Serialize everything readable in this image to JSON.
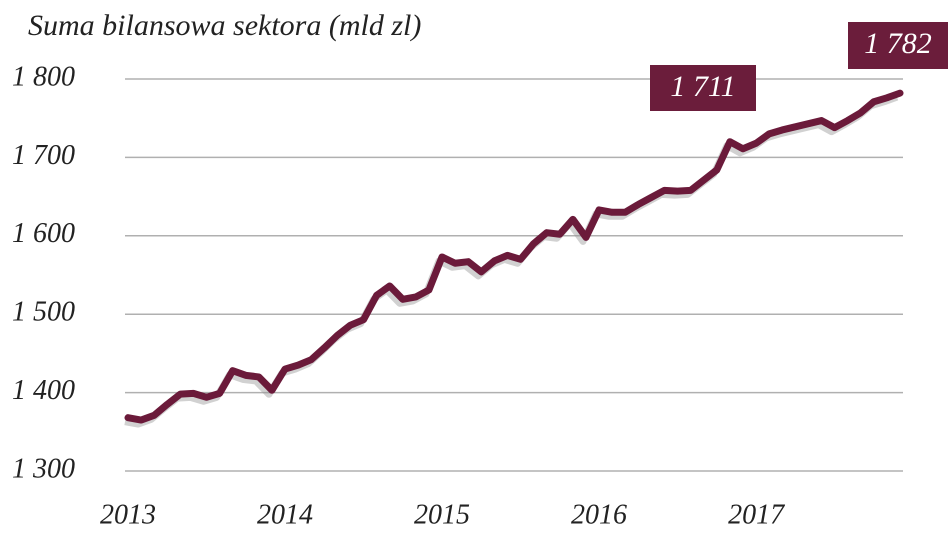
{
  "chart_data": {
    "type": "line",
    "title": "Suma bilansowa sektora (mld zl)",
    "categories": [
      "2013",
      null,
      null,
      null,
      null,
      null,
      null,
      null,
      null,
      null,
      null,
      null,
      "2014",
      null,
      null,
      null,
      null,
      null,
      null,
      null,
      null,
      null,
      null,
      null,
      "2015",
      null,
      null,
      null,
      null,
      null,
      null,
      null,
      null,
      null,
      null,
      null,
      "2016",
      null,
      null,
      null,
      null,
      null,
      null,
      null,
      null,
      null,
      null,
      null,
      "2017",
      null,
      null,
      null,
      null,
      null,
      null,
      null,
      null,
      null,
      null,
      null
    ],
    "series": [
      {
        "name": "Suma bilansowa",
        "color": "#6b1a3a",
        "values": [
          1368,
          1365,
          1371,
          1385,
          1398,
          1399,
          1394,
          1399,
          1428,
          1422,
          1420,
          1403,
          1430,
          1435,
          1442,
          1457,
          1473,
          1486,
          1493,
          1524,
          1536,
          1519,
          1522,
          1531,
          1573,
          1565,
          1567,
          1554,
          1568,
          1575,
          1570,
          1590,
          1604,
          1602,
          1621,
          1598,
          1633,
          1630,
          1630,
          1640,
          1649,
          1658,
          1657,
          1658,
          1671,
          1684,
          1720,
          1711,
          1718,
          1730,
          1735,
          1739,
          1743,
          1747,
          1738,
          1747,
          1757,
          1771,
          1776,
          1782
        ]
      }
    ],
    "ylim": [
      1300,
      1800
    ],
    "yticks": [
      {
        "value": 1300,
        "label": "1 300"
      },
      {
        "value": 1400,
        "label": "1 400"
      },
      {
        "value": 1500,
        "label": "1 500"
      },
      {
        "value": 1600,
        "label": "1 600"
      },
      {
        "value": 1700,
        "label": "1 700"
      },
      {
        "value": 1800,
        "label": "1 800"
      }
    ],
    "grid": true,
    "annotations": [
      {
        "text": "1 711"
      },
      {
        "text": "1 782"
      }
    ]
  }
}
